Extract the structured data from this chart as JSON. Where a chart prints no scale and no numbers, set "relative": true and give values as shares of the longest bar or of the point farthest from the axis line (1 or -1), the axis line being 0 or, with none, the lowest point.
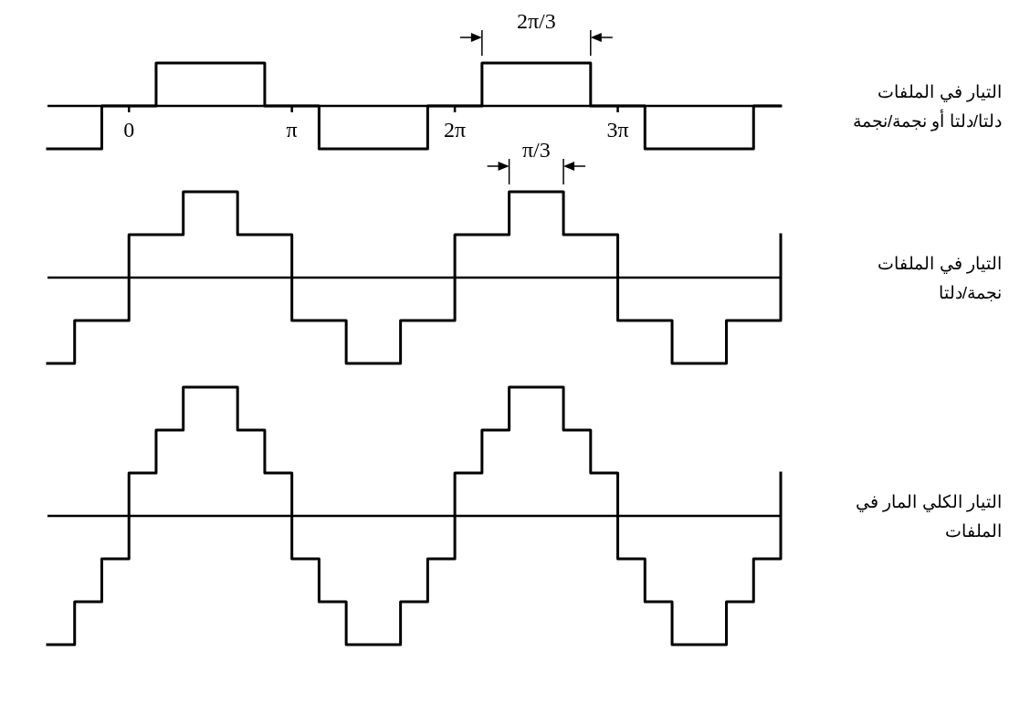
{
  "chart_data": [
    {
      "type": "step",
      "relative": true,
      "x": [
        -1.5708,
        -0.5236,
        0.5236,
        2.618,
        3.6652,
        5.7596,
        6.8068,
        8.9012,
        9.9484,
        12.0428,
        12.5664
      ],
      "xlim": [
        -1.5708,
        12.5664
      ],
      "xticks": [
        0,
        {
          "value": 3.1416,
          "label": "π"
        },
        {
          "value": 6.2832,
          "label": "2π"
        },
        {
          "value": 9.4248,
          "label": "3π"
        }
      ],
      "ylabel": "التيار في الملفات\nدلتا/دلتا أو نجمة/نجمة",
      "series": [
        {
          "color": "#000000",
          "values": [
            -1,
            0,
            1,
            0,
            -1,
            0,
            1,
            0,
            -1,
            0,
            0
          ]
        }
      ],
      "annotations": [
        {
          "text": "2π/3",
          "x": 7.854,
          "y": 1
        }
      ]
    },
    {
      "type": "step",
      "relative": true,
      "x": [
        -1.5708,
        -1.0472,
        0,
        1.0472,
        2.0944,
        3.1416,
        4.1888,
        5.236,
        6.2832,
        7.3304,
        8.3776,
        9.4248,
        10.472,
        11.5192,
        12.5664
      ],
      "xlim": [
        -1.5708,
        12.5664
      ],
      "ylabel": "التيار في الملفات\nنجمة/دلتا",
      "series": [
        {
          "color": "#000000",
          "values": [
            -1,
            -0.5,
            0.5,
            1,
            0.5,
            -0.5,
            -1,
            -0.5,
            0.5,
            1,
            0.5,
            -0.5,
            -1,
            -0.5,
            0.5
          ]
        }
      ],
      "annotations": [
        {
          "text": "π/3",
          "x": 7.854,
          "y": 1
        }
      ]
    },
    {
      "type": "step",
      "relative": true,
      "x": [
        -1.5708,
        -1.0472,
        -0.5236,
        0,
        0.5236,
        1.0472,
        2.0944,
        2.618,
        3.1416,
        3.6652,
        4.1888,
        5.236,
        5.7596,
        6.2832,
        6.8068,
        7.3304,
        8.3776,
        8.9012,
        9.4248,
        9.9484,
        10.472,
        11.5192,
        12.0428,
        12.5664
      ],
      "xlim": [
        -1.5708,
        12.5664
      ],
      "ylabel": "التيار الكلي المار في\nالملفات",
      "series": [
        {
          "color": "#000000",
          "values": [
            -1,
            -0.6667,
            -0.3333,
            0.3333,
            0.6667,
            1,
            0.6667,
            0.3333,
            -0.3333,
            -0.6667,
            -1,
            -0.6667,
            -0.3333,
            0.3333,
            0.6667,
            1,
            0.6667,
            0.3333,
            -0.3333,
            -0.6667,
            -1,
            -0.6667,
            -0.3333,
            0.3333
          ]
        }
      ]
    }
  ]
}
